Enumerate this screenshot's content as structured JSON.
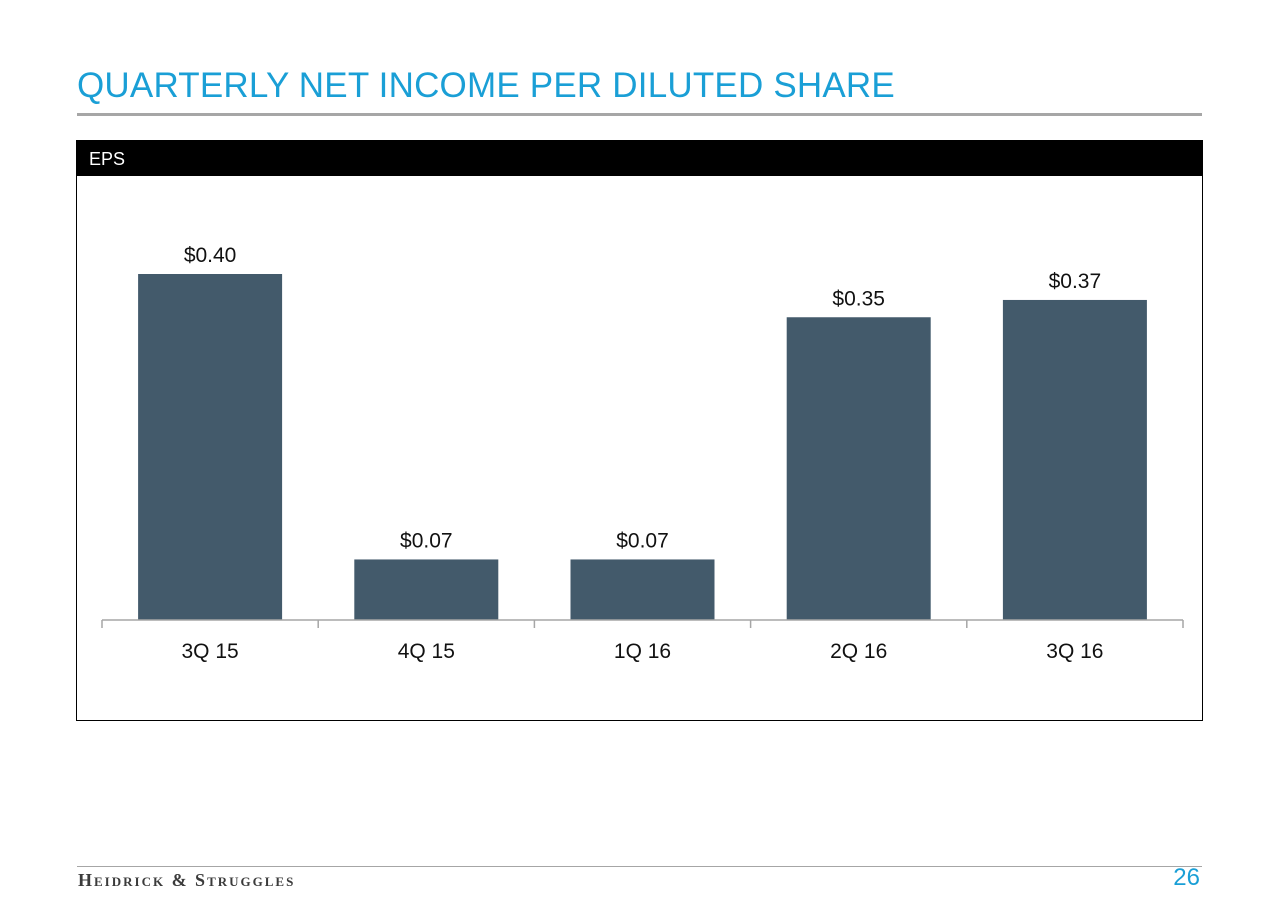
{
  "slide": {
    "title": "QUARTERLY NET INCOME PER DILUTED SHARE",
    "page_number": "26",
    "logo_text": "Heidrick & Struggles"
  },
  "chart_header": {
    "label": "EPS"
  },
  "colors": {
    "title": "#1a9fd6",
    "bar": "#435a6b",
    "header_bg": "#000000",
    "rule": "#a6a6a6"
  },
  "chart_data": {
    "type": "bar",
    "title": "",
    "xlabel": "",
    "ylabel": "",
    "categories": [
      "3Q 15",
      "4Q 15",
      "1Q 16",
      "2Q 16",
      "3Q 16"
    ],
    "values": [
      0.4,
      0.07,
      0.07,
      0.35,
      0.37
    ],
    "data_labels": [
      "$0.40",
      "$0.07",
      "$0.07",
      "$0.35",
      "$0.37"
    ],
    "ylim": [
      0,
      0.4
    ],
    "grid": false,
    "legend": "none"
  }
}
